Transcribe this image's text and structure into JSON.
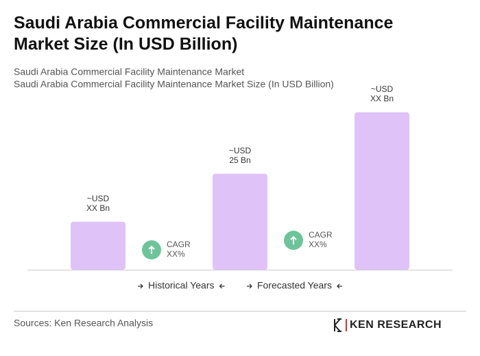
{
  "chart_data": {
    "type": "bar",
    "title": [
      "Saudi Arabia Commercial Facility Maintenance",
      "Market Size (In USD Billion)"
    ],
    "subtitle": [
      "Saudi Arabia Commercial Facility Maintenance Market",
      "Saudi Arabia Commercial Facility Maintenance Market Size (In USD Billion)"
    ],
    "categories": [
      null,
      null,
      null
    ],
    "values": [
      12.5,
      25,
      41
    ],
    "value_labels": [
      [
        "~USD",
        "XX Bn"
      ],
      [
        "~USD",
        "25 Bn"
      ],
      [
        "~USD",
        "XX Bn"
      ]
    ],
    "color": "#dfc3f8",
    "annotations": [
      [
        "CAGR",
        "XX%"
      ],
      [
        "CAGR",
        "XX%"
      ]
    ],
    "periods": [
      "Historical Years",
      "Forecasted Years"
    ],
    "source": "Sources: Ken Research Analysis",
    "logo": "KEN RESEARCH"
  }
}
